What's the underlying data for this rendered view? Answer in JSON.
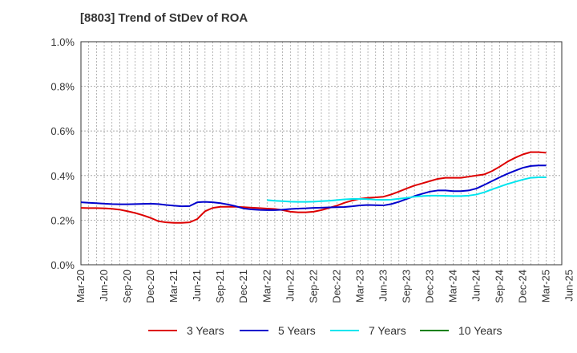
{
  "title": "[8803]  Trend of StDev of ROA",
  "colors": {
    "3y": "#dd0000",
    "5y": "#0000cc",
    "7y": "#00e5ee",
    "10y": "#008000",
    "grid": "#999999",
    "axis": "#333333"
  },
  "chart_data": {
    "type": "line",
    "title": "[8803]  Trend of StDev of ROA",
    "xlabel": "",
    "ylabel": "",
    "ylim": [
      0,
      1.0
    ],
    "yticks": [
      "0.0%",
      "0.2%",
      "0.4%",
      "0.6%",
      "0.8%",
      "1.0%"
    ],
    "grid": "dotted",
    "legend_position": "bottom",
    "x_tick_labels": [
      "Mar-20",
      "Jun-20",
      "Sep-20",
      "Dec-20",
      "Mar-21",
      "Jun-21",
      "Sep-21",
      "Dec-21",
      "Mar-22",
      "Jun-22",
      "Sep-22",
      "Dec-22",
      "Mar-23",
      "Jun-23",
      "Sep-23",
      "Dec-23",
      "Mar-24",
      "Jun-24",
      "Sep-24",
      "Dec-24",
      "Mar-25",
      "Jun-25"
    ],
    "x_months": [
      "2020-03",
      "2020-04",
      "2020-05",
      "2020-06",
      "2020-07",
      "2020-08",
      "2020-09",
      "2020-10",
      "2020-11",
      "2020-12",
      "2021-01",
      "2021-02",
      "2021-03",
      "2021-04",
      "2021-05",
      "2021-06",
      "2021-07",
      "2021-08",
      "2021-09",
      "2021-10",
      "2021-11",
      "2021-12",
      "2022-01",
      "2022-02",
      "2022-03",
      "2022-04",
      "2022-05",
      "2022-06",
      "2022-07",
      "2022-08",
      "2022-09",
      "2022-10",
      "2022-11",
      "2022-12",
      "2023-01",
      "2023-02",
      "2023-03",
      "2023-04",
      "2023-05",
      "2023-06",
      "2023-07",
      "2023-08",
      "2023-09",
      "2023-10",
      "2023-11",
      "2023-12",
      "2024-01",
      "2024-02",
      "2024-03",
      "2024-04",
      "2024-05",
      "2024-06",
      "2024-07",
      "2024-08",
      "2024-09",
      "2024-10",
      "2024-11",
      "2024-12",
      "2025-01",
      "2025-02",
      "2025-03"
    ],
    "series": [
      {
        "name": "3 Years",
        "color": "#dd0000",
        "values": [
          0.255,
          0.254,
          0.254,
          0.253,
          0.251,
          0.247,
          0.24,
          0.232,
          0.222,
          0.21,
          0.195,
          0.19,
          0.188,
          0.188,
          0.19,
          0.205,
          0.24,
          0.255,
          0.26,
          0.26,
          0.26,
          0.258,
          0.256,
          0.254,
          0.252,
          0.25,
          0.245,
          0.238,
          0.235,
          0.235,
          0.238,
          0.245,
          0.255,
          0.265,
          0.278,
          0.288,
          0.296,
          0.3,
          0.302,
          0.305,
          0.315,
          0.328,
          0.342,
          0.355,
          0.365,
          0.375,
          0.385,
          0.39,
          0.39,
          0.39,
          0.395,
          0.4,
          0.405,
          0.42,
          0.44,
          0.462,
          0.48,
          0.495,
          0.505,
          0.505,
          0.502
        ]
      },
      {
        "name": "5 Years",
        "color": "#0000cc",
        "values": [
          0.28,
          0.278,
          0.276,
          0.274,
          0.272,
          0.271,
          0.271,
          0.272,
          0.273,
          0.274,
          0.272,
          0.268,
          0.265,
          0.262,
          0.263,
          0.28,
          0.282,
          0.28,
          0.276,
          0.27,
          0.262,
          0.252,
          0.248,
          0.246,
          0.245,
          0.245,
          0.247,
          0.25,
          0.252,
          0.253,
          0.255,
          0.256,
          0.257,
          0.258,
          0.259,
          0.262,
          0.266,
          0.268,
          0.267,
          0.266,
          0.272,
          0.282,
          0.295,
          0.308,
          0.318,
          0.328,
          0.333,
          0.333,
          0.33,
          0.33,
          0.333,
          0.342,
          0.358,
          0.375,
          0.392,
          0.408,
          0.422,
          0.435,
          0.443,
          0.445,
          0.445
        ]
      },
      {
        "name": "7 Years",
        "color": "#00e5ee",
        "values": [
          null,
          null,
          null,
          null,
          null,
          null,
          null,
          null,
          null,
          null,
          null,
          null,
          null,
          null,
          null,
          null,
          null,
          null,
          null,
          null,
          null,
          null,
          null,
          null,
          0.29,
          0.287,
          0.285,
          0.283,
          0.282,
          0.282,
          0.283,
          0.285,
          0.287,
          0.29,
          0.293,
          0.295,
          0.295,
          0.294,
          0.292,
          0.291,
          0.292,
          0.296,
          0.3,
          0.305,
          0.308,
          0.31,
          0.31,
          0.309,
          0.308,
          0.308,
          0.31,
          0.315,
          0.325,
          0.338,
          0.35,
          0.362,
          0.372,
          0.382,
          0.39,
          0.392,
          0.392
        ]
      },
      {
        "name": "10 Years",
        "color": "#008000",
        "values": []
      }
    ]
  },
  "legend": [
    {
      "label": "3 Years",
      "color": "#dd0000"
    },
    {
      "label": "5 Years",
      "color": "#0000cc"
    },
    {
      "label": "7 Years",
      "color": "#00e5ee"
    },
    {
      "label": "10 Years",
      "color": "#008000"
    }
  ]
}
